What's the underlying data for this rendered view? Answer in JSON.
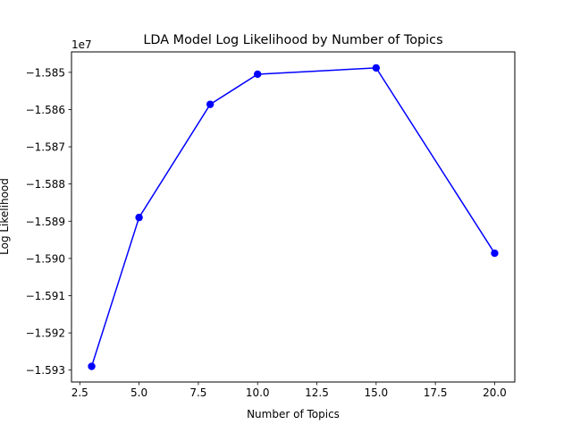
{
  "chart_data": {
    "type": "line",
    "title": "LDA Model Log Likelihood by Number of Topics",
    "xlabel": "Number of Topics",
    "ylabel": "Log Likelihood",
    "y_offset_label": "1e7",
    "x": [
      3,
      5,
      8,
      10,
      15,
      20
    ],
    "series": [
      {
        "values": [
          -15929000,
          -15889000,
          -15858600,
          -15850500,
          -15848800,
          -15898600
        ],
        "color": "#0000ff",
        "marker": "circle"
      }
    ],
    "xlim": [
      2.15,
      20.85
    ],
    "ylim": [
      -15933200,
      -15844500
    ],
    "xticks": [
      2.5,
      5.0,
      7.5,
      10.0,
      12.5,
      15.0,
      17.5,
      20.0
    ],
    "xtick_labels": [
      "2.5",
      "5.0",
      "7.5",
      "10.0",
      "12.5",
      "15.0",
      "17.5",
      "20.0"
    ],
    "yticks": [
      -15930000,
      -15920000,
      -15910000,
      -15900000,
      -15890000,
      -15880000,
      -15870000,
      -15860000,
      -15850000
    ],
    "ytick_labels": [
      "−1.593",
      "−1.592",
      "−1.591",
      "−1.590",
      "−1.589",
      "−1.588",
      "−1.587",
      "−1.586",
      "−1.585"
    ],
    "grid": false,
    "legend": "none"
  }
}
